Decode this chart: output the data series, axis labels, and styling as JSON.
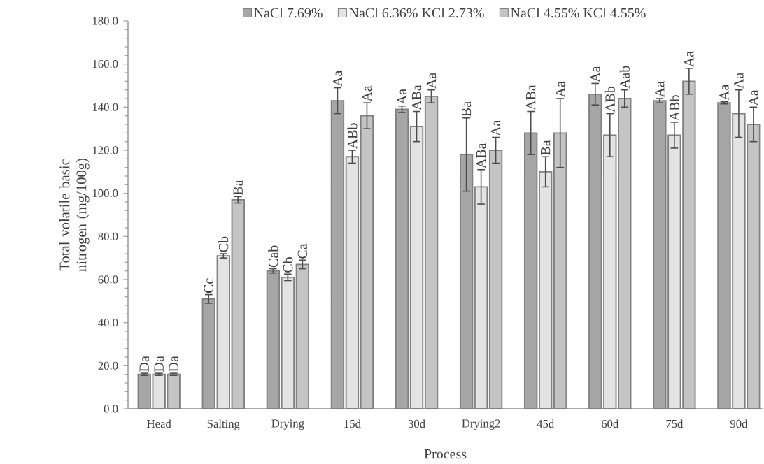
{
  "chart_data": {
    "type": "bar",
    "xlabel": "Process",
    "ylabel": "Total volatile basic nitrogen (mg/100g)",
    "categories": [
      "Head",
      "Salting",
      "Drying",
      "15d",
      "30d",
      "Drying2",
      "45d",
      "60d",
      "75d",
      "90d"
    ],
    "ylim": [
      0,
      180
    ],
    "yticks": [
      {
        "value": 0,
        "label": "0.0"
      },
      {
        "value": 20,
        "label": "20.0"
      },
      {
        "value": 40,
        "label": "40.0"
      },
      {
        "value": 60,
        "label": "60.0"
      },
      {
        "value": 80,
        "label": "80.0"
      },
      {
        "value": 100,
        "label": "100.0"
      },
      {
        "value": 120,
        "label": "120.0"
      },
      {
        "value": 140,
        "label": "140.0"
      },
      {
        "value": 160,
        "label": "160.0"
      },
      {
        "value": 180,
        "label": "180.0"
      }
    ],
    "legend": "top",
    "grid": false,
    "series": [
      {
        "name": "NaCl 7.69%",
        "color": "#a6a6a6",
        "values": [
          16,
          51,
          64,
          143,
          139,
          118,
          128,
          146,
          143,
          142
        ],
        "errors": [
          0.5,
          2,
          1,
          6,
          1.5,
          17,
          10,
          5,
          1,
          0.5
        ],
        "value_labels": [
          "Da",
          "Cc",
          "Cab",
          "Aa",
          "Aa",
          "Ba",
          "ABa",
          "Aa",
          "Aa",
          "Aa"
        ]
      },
      {
        "name": "NaCl 6.36% KCl 2.73%",
        "color": "#e3e3e3",
        "values": [
          16,
          71,
          61,
          117,
          131,
          103,
          110,
          127,
          127,
          137
        ],
        "errors": [
          0.5,
          1,
          1.5,
          3,
          7,
          8,
          7,
          10,
          6,
          11
        ],
        "value_labels": [
          "Da",
          "Cb",
          "Cb",
          "ABb",
          "ABa",
          "ABa",
          "Ba",
          "ABb",
          "ABb",
          "Aa"
        ]
      },
      {
        "name": "NaCl 4.55% KCl 4.55%",
        "color": "#c4c4c4",
        "values": [
          16,
          97,
          67,
          136,
          145,
          120,
          128,
          144,
          152,
          132
        ],
        "errors": [
          0.5,
          1.5,
          2,
          6,
          3,
          6,
          16,
          4,
          6,
          8
        ],
        "value_labels": [
          "Da",
          "Ba",
          "Ca",
          "Aa",
          "Aa",
          "Aa",
          "Aa",
          "Aab",
          "Aa",
          "Aa"
        ]
      }
    ]
  }
}
